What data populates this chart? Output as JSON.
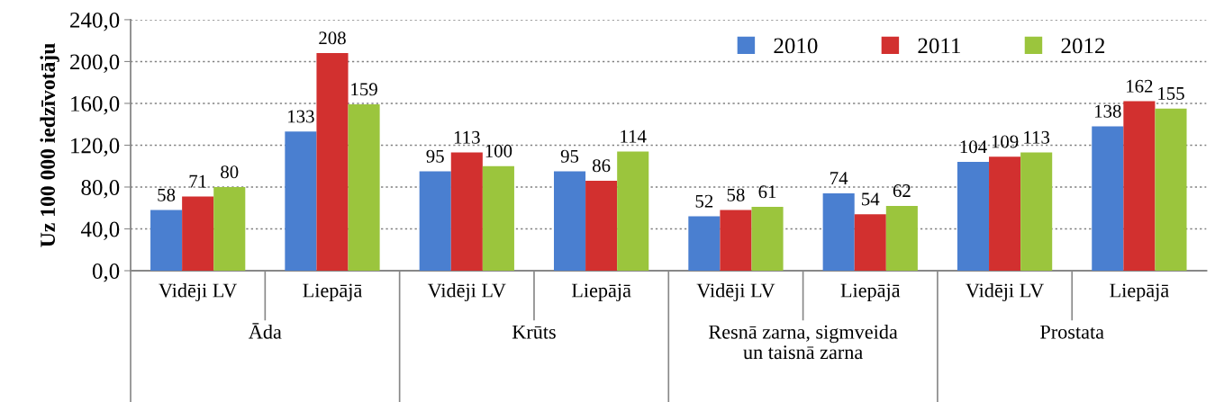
{
  "chart_data": {
    "type": "bar",
    "ylabel": "Uz 100 000 iedzīvotāju",
    "categories": [
      "Vidēji LV",
      "Liepājā",
      "Vidēji LV",
      "Liepājā",
      "Vidēji LV",
      "Liepājā",
      "Vidēji LV",
      "Liepājā"
    ],
    "series": [
      {
        "name": "2010",
        "color": "#4a7fd0",
        "values": [
          58,
          133,
          95,
          95,
          52,
          74,
          104,
          138
        ]
      },
      {
        "name": "2011",
        "color": "#d2302f",
        "values": [
          71,
          208,
          113,
          86,
          58,
          54,
          109,
          162
        ]
      },
      {
        "name": "2012",
        "color": "#9bc53d",
        "values": [
          80,
          159,
          100,
          114,
          61,
          62,
          113,
          155
        ]
      }
    ],
    "ylim": [
      0,
      240
    ],
    "yticks": [
      {
        "value": 0,
        "label": "0,0"
      },
      {
        "value": 40,
        "label": "40,0"
      },
      {
        "value": 80,
        "label": "80,0"
      },
      {
        "value": 120,
        "label": "120,0"
      },
      {
        "value": 160,
        "label": "160,0"
      },
      {
        "value": 200,
        "label": "200,0"
      },
      {
        "value": 240,
        "label": "240,0"
      }
    ],
    "grid": "y",
    "legend": "top right",
    "data_labels": true,
    "annotations": [
      "Āda",
      "Krūts",
      "Resnā zarna, sigmveida\nun taisnā zarna",
      "Prostata"
    ]
  }
}
